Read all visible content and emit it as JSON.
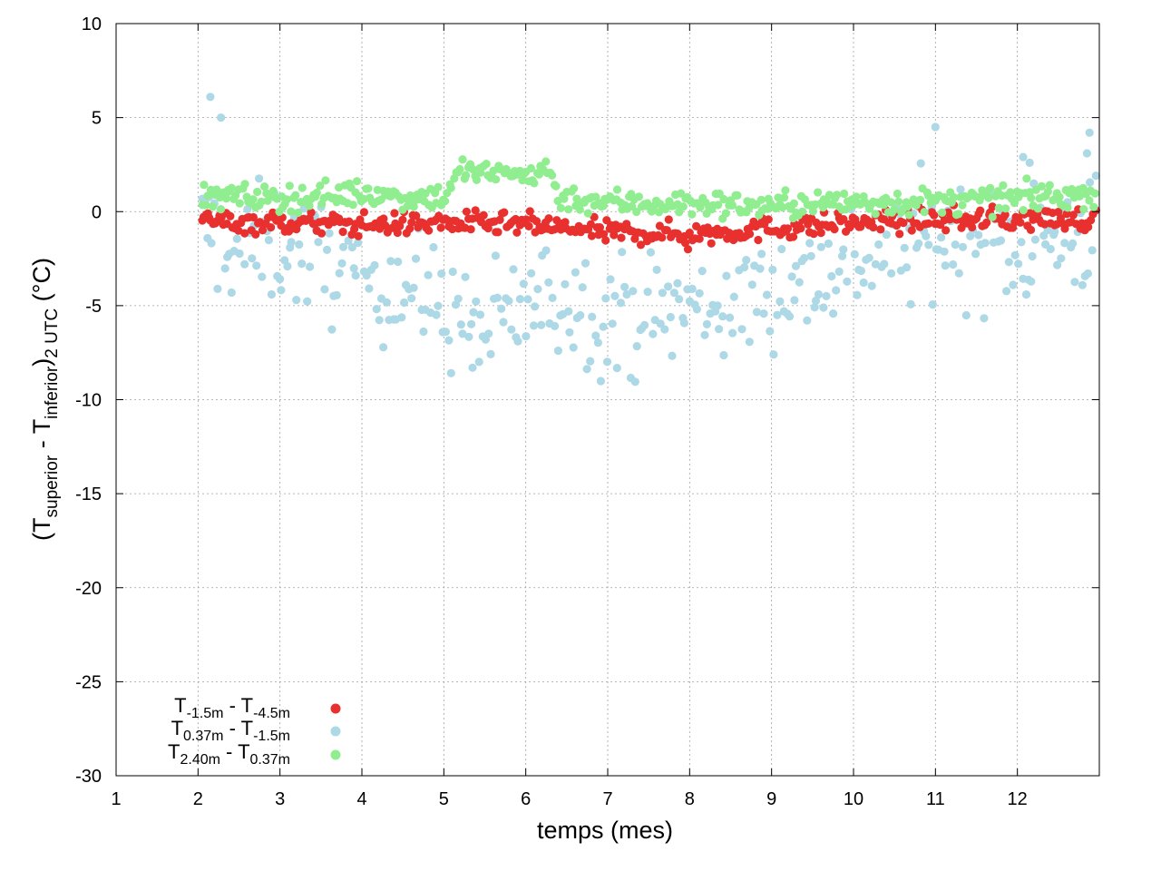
{
  "chart_data": {
    "type": "scatter",
    "title": "",
    "xlabel": "temps (mes)",
    "ylabel": {
      "prefix": "(T",
      "sub1": "superior",
      "mid": " - T",
      "sub2": "inferior",
      "close": ")",
      "sub3": "2 UTC",
      "unit": " (°C)"
    },
    "xlim": [
      1,
      13
    ],
    "ylim": [
      -30,
      10
    ],
    "xticks": [
      1,
      2,
      3,
      4,
      5,
      6,
      7,
      8,
      9,
      10,
      11,
      12
    ],
    "yticks": [
      -30,
      -25,
      -20,
      -15,
      -10,
      -5,
      0,
      5,
      10
    ],
    "grid": true,
    "legend_position": "bottom-left",
    "series": [
      {
        "legend": {
          "t1": "T",
          "s1": "-1.5m",
          "dash": " - T",
          "s2": "-4.5m"
        },
        "color": "#e8302e",
        "trend": [
          [
            2.05,
            -0.5
          ],
          [
            3,
            -0.6
          ],
          [
            4,
            -0.7
          ],
          [
            5,
            -0.6
          ],
          [
            6,
            -0.7
          ],
          [
            7,
            -1.1
          ],
          [
            8,
            -1.2
          ],
          [
            9,
            -0.9
          ],
          [
            10,
            -0.6
          ],
          [
            11,
            -0.4
          ],
          [
            12,
            -0.4
          ],
          [
            12.95,
            -0.4
          ]
        ],
        "spread": 0.3,
        "outliers": [
          [
            7.98,
            -2.0
          ],
          [
            2.12,
            -0.1
          ]
        ]
      },
      {
        "legend": {
          "t1": "T",
          "s1": "0.37m",
          "dash": " - T",
          "s2": "-1.5m"
        },
        "color": "#add8e6",
        "trend": [
          [
            2.05,
            -1.0
          ],
          [
            2.5,
            -2.0
          ],
          [
            3,
            -1.8
          ],
          [
            3.5,
            -2.6
          ],
          [
            4,
            -3.0
          ],
          [
            4.5,
            -4.0
          ],
          [
            5,
            -5.0
          ],
          [
            5.5,
            -6.5
          ],
          [
            6,
            -5.0
          ],
          [
            6.5,
            -4.5
          ],
          [
            7,
            -5.5
          ],
          [
            7.5,
            -5.5
          ],
          [
            8,
            -5.0
          ],
          [
            8.5,
            -5.0
          ],
          [
            9,
            -4.0
          ],
          [
            9.5,
            -3.5
          ],
          [
            10,
            -2.5
          ],
          [
            10.5,
            -2.0
          ],
          [
            11,
            -1.5
          ],
          [
            11.5,
            -1.5
          ],
          [
            12,
            -2.0
          ],
          [
            12.5,
            -1.5
          ],
          [
            12.95,
            -1.0
          ]
        ],
        "spread": 1.6,
        "outliers": [
          [
            2.15,
            6.1
          ],
          [
            2.28,
            5.0
          ],
          [
            11.0,
            4.5
          ],
          [
            12.07,
            2.9
          ],
          [
            12.15,
            2.6
          ],
          [
            12.88,
            4.2
          ],
          [
            12.85,
            3.1
          ],
          [
            12.2,
            1.5
          ],
          [
            5.35,
            -8.3
          ]
        ]
      },
      {
        "legend": {
          "t1": "T",
          "s1": "2.40m",
          "dash": " - T",
          "s2": "0.37m"
        },
        "color": "#90ee90",
        "trend": [
          [
            2.05,
            0.8
          ],
          [
            3,
            0.7
          ],
          [
            4,
            1.0
          ],
          [
            4.5,
            0.8
          ],
          [
            5,
            0.8
          ],
          [
            5.2,
            2.2
          ],
          [
            5.5,
            2.0
          ],
          [
            6,
            2.0
          ],
          [
            6.3,
            2.2
          ],
          [
            6.4,
            0.8
          ],
          [
            7,
            0.5
          ],
          [
            8,
            0.4
          ],
          [
            9,
            0.3
          ],
          [
            10,
            0.5
          ],
          [
            11,
            0.5
          ],
          [
            12,
            0.7
          ],
          [
            12.95,
            1.0
          ]
        ],
        "spread": 0.35,
        "outliers": []
      }
    ]
  }
}
